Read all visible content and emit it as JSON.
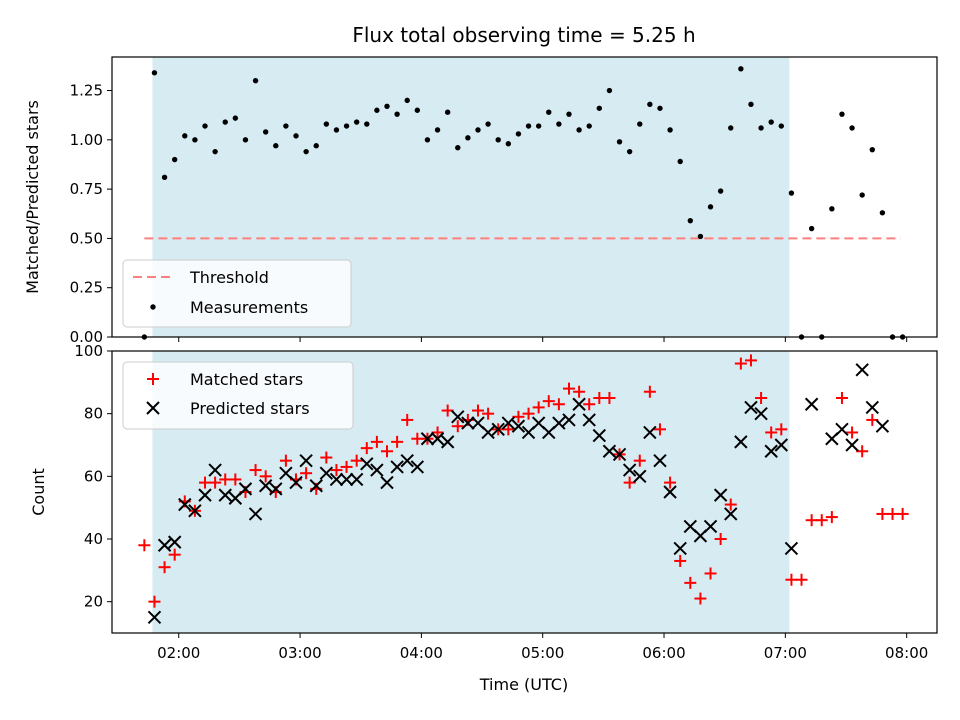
{
  "chart_data": [
    {
      "type": "scatter",
      "title": "Flux total observing time = 5.25 h",
      "xlabel": "",
      "ylabel": "Matched/Predicted stars",
      "ylim": [
        0,
        1.42
      ],
      "yticks": [
        "0.00",
        "0.25",
        "0.50",
        "0.75",
        "1.00",
        "1.25"
      ],
      "xlim": [
        "01:27",
        "08:15"
      ],
      "xticks": [
        "02:00",
        "03:00",
        "04:00",
        "05:00",
        "06:00",
        "07:00",
        "08:00"
      ],
      "shaded_span": [
        "01:47",
        "07:02"
      ],
      "threshold": {
        "name": "Threshold",
        "value": 0.5,
        "x_start": "01:43",
        "x_end": "07:57",
        "color": "#ff7f7f",
        "style": "dashed"
      },
      "legend": {
        "placement": "lower-left",
        "entries": [
          "Threshold",
          "Measurements"
        ]
      },
      "series": [
        {
          "name": "Measurements",
          "color": "#000000",
          "marker": "dot",
          "points": [
            [
              "01:43",
              0.0
            ],
            [
              "01:48",
              1.34
            ],
            [
              "01:53",
              0.81
            ],
            [
              "01:58",
              0.9
            ],
            [
              "02:03",
              1.02
            ],
            [
              "02:08",
              1.0
            ],
            [
              "02:13",
              1.07
            ],
            [
              "02:18",
              0.94
            ],
            [
              "02:23",
              1.09
            ],
            [
              "02:28",
              1.11
            ],
            [
              "02:33",
              1.0
            ],
            [
              "02:38",
              1.3
            ],
            [
              "02:43",
              1.04
            ],
            [
              "02:48",
              0.97
            ],
            [
              "02:53",
              1.07
            ],
            [
              "02:58",
              1.02
            ],
            [
              "03:03",
              0.94
            ],
            [
              "03:08",
              0.97
            ],
            [
              "03:13",
              1.08
            ],
            [
              "03:18",
              1.05
            ],
            [
              "03:23",
              1.07
            ],
            [
              "03:28",
              1.09
            ],
            [
              "03:33",
              1.08
            ],
            [
              "03:38",
              1.15
            ],
            [
              "03:43",
              1.17
            ],
            [
              "03:48",
              1.13
            ],
            [
              "03:53",
              1.2
            ],
            [
              "03:58",
              1.15
            ],
            [
              "04:03",
              1.0
            ],
            [
              "04:08",
              1.05
            ],
            [
              "04:13",
              1.14
            ],
            [
              "04:18",
              0.96
            ],
            [
              "04:23",
              1.01
            ],
            [
              "04:28",
              1.05
            ],
            [
              "04:33",
              1.08
            ],
            [
              "04:38",
              1.0
            ],
            [
              "04:43",
              0.98
            ],
            [
              "04:48",
              1.03
            ],
            [
              "04:53",
              1.07
            ],
            [
              "04:58",
              1.07
            ],
            [
              "05:03",
              1.14
            ],
            [
              "05:08",
              1.08
            ],
            [
              "05:13",
              1.13
            ],
            [
              "05:18",
              1.05
            ],
            [
              "05:23",
              1.07
            ],
            [
              "05:28",
              1.16
            ],
            [
              "05:33",
              1.25
            ],
            [
              "05:38",
              0.99
            ],
            [
              "05:43",
              0.94
            ],
            [
              "05:48",
              1.08
            ],
            [
              "05:53",
              1.18
            ],
            [
              "05:58",
              1.16
            ],
            [
              "06:03",
              1.05
            ],
            [
              "06:08",
              0.89
            ],
            [
              "06:13",
              0.59
            ],
            [
              "06:18",
              0.51
            ],
            [
              "06:23",
              0.66
            ],
            [
              "06:28",
              0.74
            ],
            [
              "06:33",
              1.06
            ],
            [
              "06:38",
              1.36
            ],
            [
              "06:43",
              1.18
            ],
            [
              "06:48",
              1.06
            ],
            [
              "06:53",
              1.09
            ],
            [
              "06:58",
              1.07
            ],
            [
              "07:03",
              0.73
            ],
            [
              "07:08",
              0.0
            ],
            [
              "07:13",
              0.55
            ],
            [
              "07:18",
              0.0
            ],
            [
              "07:23",
              0.65
            ],
            [
              "07:28",
              1.13
            ],
            [
              "07:33",
              1.06
            ],
            [
              "07:38",
              0.72
            ],
            [
              "07:43",
              0.95
            ],
            [
              "07:48",
              0.63
            ],
            [
              "07:53",
              0.0
            ],
            [
              "07:58",
              0.0
            ]
          ]
        }
      ]
    },
    {
      "type": "scatter",
      "title": "",
      "xlabel": "Time (UTC)",
      "ylabel": "Count",
      "ylim": [
        10,
        100
      ],
      "yticks": [
        "20",
        "40",
        "60",
        "80",
        "100"
      ],
      "xlim": [
        "01:27",
        "08:15"
      ],
      "xticks": [
        "02:00",
        "03:00",
        "04:00",
        "05:00",
        "06:00",
        "07:00",
        "08:00"
      ],
      "shaded_span": [
        "01:47",
        "07:02"
      ],
      "legend": {
        "placement": "upper-left",
        "entries": [
          "Matched stars",
          "Predicted stars"
        ]
      },
      "series": [
        {
          "name": "Matched stars",
          "color": "#ff0000",
          "marker": "plus",
          "points": [
            [
              "01:43",
              38
            ],
            [
              "01:48",
              20
            ],
            [
              "01:53",
              31
            ],
            [
              "01:58",
              35
            ],
            [
              "02:03",
              52
            ],
            [
              "02:08",
              49
            ],
            [
              "02:13",
              58
            ],
            [
              "02:18",
              58
            ],
            [
              "02:23",
              59
            ],
            [
              "02:28",
              59
            ],
            [
              "02:33",
              55
            ],
            [
              "02:38",
              62
            ],
            [
              "02:43",
              60
            ],
            [
              "02:48",
              55
            ],
            [
              "02:53",
              65
            ],
            [
              "02:58",
              59
            ],
            [
              "03:03",
              61
            ],
            [
              "03:08",
              56
            ],
            [
              "03:13",
              66
            ],
            [
              "03:18",
              62
            ],
            [
              "03:23",
              63
            ],
            [
              "03:28",
              65
            ],
            [
              "03:33",
              69
            ],
            [
              "03:38",
              71
            ],
            [
              "03:43",
              68
            ],
            [
              "03:48",
              71
            ],
            [
              "03:53",
              78
            ],
            [
              "03:58",
              72
            ],
            [
              "04:03",
              72
            ],
            [
              "04:08",
              74
            ],
            [
              "04:13",
              81
            ],
            [
              "04:18",
              76
            ],
            [
              "04:23",
              78
            ],
            [
              "04:28",
              81
            ],
            [
              "04:33",
              80
            ],
            [
              "04:38",
              75
            ],
            [
              "04:43",
              75
            ],
            [
              "04:48",
              79
            ],
            [
              "04:53",
              80
            ],
            [
              "04:58",
              82
            ],
            [
              "05:03",
              84
            ],
            [
              "05:08",
              83
            ],
            [
              "05:13",
              88
            ],
            [
              "05:18",
              87
            ],
            [
              "05:23",
              83
            ],
            [
              "05:28",
              85
            ],
            [
              "05:33",
              85
            ],
            [
              "05:38",
              67
            ],
            [
              "05:43",
              58
            ],
            [
              "05:48",
              65
            ],
            [
              "05:53",
              87
            ],
            [
              "05:58",
              75
            ],
            [
              "06:03",
              58
            ],
            [
              "06:08",
              33
            ],
            [
              "06:13",
              26
            ],
            [
              "06:18",
              21
            ],
            [
              "06:23",
              29
            ],
            [
              "06:28",
              40
            ],
            [
              "06:33",
              51
            ],
            [
              "06:38",
              96
            ],
            [
              "06:43",
              97
            ],
            [
              "06:48",
              85
            ],
            [
              "06:53",
              74
            ],
            [
              "06:58",
              75
            ],
            [
              "07:03",
              27
            ],
            [
              "07:08",
              27
            ],
            [
              "07:13",
              46
            ],
            [
              "07:18",
              46
            ],
            [
              "07:23",
              47
            ],
            [
              "07:28",
              85
            ],
            [
              "07:33",
              74
            ],
            [
              "07:38",
              68
            ],
            [
              "07:43",
              78
            ],
            [
              "07:48",
              48
            ],
            [
              "07:53",
              48
            ],
            [
              "07:58",
              48
            ]
          ]
        },
        {
          "name": "Predicted stars",
          "color": "#000000",
          "marker": "x",
          "points": [
            [
              "01:48",
              15
            ],
            [
              "01:53",
              38
            ],
            [
              "01:58",
              39
            ],
            [
              "02:03",
              51
            ],
            [
              "02:08",
              49
            ],
            [
              "02:13",
              54
            ],
            [
              "02:18",
              62
            ],
            [
              "02:23",
              54
            ],
            [
              "02:28",
              53
            ],
            [
              "02:33",
              56
            ],
            [
              "02:38",
              48
            ],
            [
              "02:43",
              57
            ],
            [
              "02:48",
              56
            ],
            [
              "02:53",
              61
            ],
            [
              "02:58",
              58
            ],
            [
              "03:03",
              65
            ],
            [
              "03:08",
              57
            ],
            [
              "03:13",
              61
            ],
            [
              "03:18",
              59
            ],
            [
              "03:23",
              59
            ],
            [
              "03:28",
              59
            ],
            [
              "03:33",
              64
            ],
            [
              "03:38",
              62
            ],
            [
              "03:43",
              58
            ],
            [
              "03:48",
              63
            ],
            [
              "03:53",
              65
            ],
            [
              "03:58",
              63
            ],
            [
              "04:03",
              72
            ],
            [
              "04:08",
              72
            ],
            [
              "04:13",
              71
            ],
            [
              "04:18",
              79
            ],
            [
              "04:23",
              77
            ],
            [
              "04:28",
              77
            ],
            [
              "04:33",
              74
            ],
            [
              "04:38",
              75
            ],
            [
              "04:43",
              77
            ],
            [
              "04:48",
              76
            ],
            [
              "04:53",
              74
            ],
            [
              "04:58",
              77
            ],
            [
              "05:03",
              74
            ],
            [
              "05:08",
              77
            ],
            [
              "05:13",
              78
            ],
            [
              "05:18",
              83
            ],
            [
              "05:23",
              78
            ],
            [
              "05:28",
              73
            ],
            [
              "05:33",
              68
            ],
            [
              "05:38",
              67
            ],
            [
              "05:43",
              62
            ],
            [
              "05:48",
              60
            ],
            [
              "05:53",
              74
            ],
            [
              "05:58",
              65
            ],
            [
              "06:03",
              55
            ],
            [
              "06:08",
              37
            ],
            [
              "06:13",
              44
            ],
            [
              "06:18",
              41
            ],
            [
              "06:23",
              44
            ],
            [
              "06:28",
              54
            ],
            [
              "06:33",
              48
            ],
            [
              "06:38",
              71
            ],
            [
              "06:43",
              82
            ],
            [
              "06:48",
              80
            ],
            [
              "06:53",
              68
            ],
            [
              "06:58",
              70
            ],
            [
              "07:03",
              37
            ],
            [
              "07:13",
              83
            ],
            [
              "07:23",
              72
            ],
            [
              "07:28",
              75
            ],
            [
              "07:33",
              70
            ],
            [
              "07:38",
              94
            ],
            [
              "07:43",
              82
            ],
            [
              "07:48",
              76
            ]
          ]
        }
      ]
    }
  ]
}
